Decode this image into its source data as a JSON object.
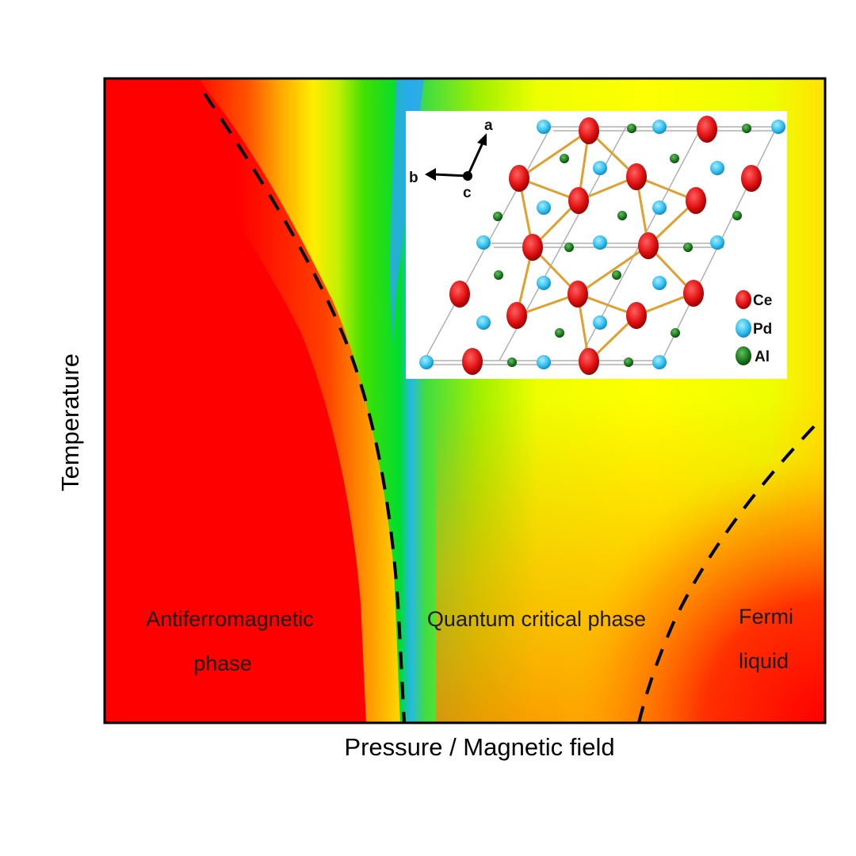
{
  "axes": {
    "x_label": "Pressure / Magnetic field",
    "y_label": "Temperature"
  },
  "phases": [
    {
      "id": "afm",
      "lines": [
        "Antiferromagnetic",
        "phase"
      ]
    },
    {
      "id": "qcp",
      "lines": [
        "Quantum critical phase"
      ]
    },
    {
      "id": "fl",
      "lines": [
        "Fermi",
        "liquid"
      ]
    }
  ],
  "colormap": {
    "ordered_phase": "#ff0000",
    "critical_region": "#00e000",
    "critical_center": "#1aa8f0",
    "crossover": "#ffff00",
    "fermi_liquid": "#ff2000"
  },
  "boundary_style": "dashed-black",
  "inset": {
    "axes": {
      "a": "a",
      "b": "b",
      "c": "c"
    },
    "legend": [
      {
        "label": "Ce",
        "color": "#e01010"
      },
      {
        "label": "Pd",
        "color": "#30c0f0"
      },
      {
        "label": "Al",
        "color": "#1f7a1f"
      }
    ],
    "bond_color": "#e0a030"
  }
}
